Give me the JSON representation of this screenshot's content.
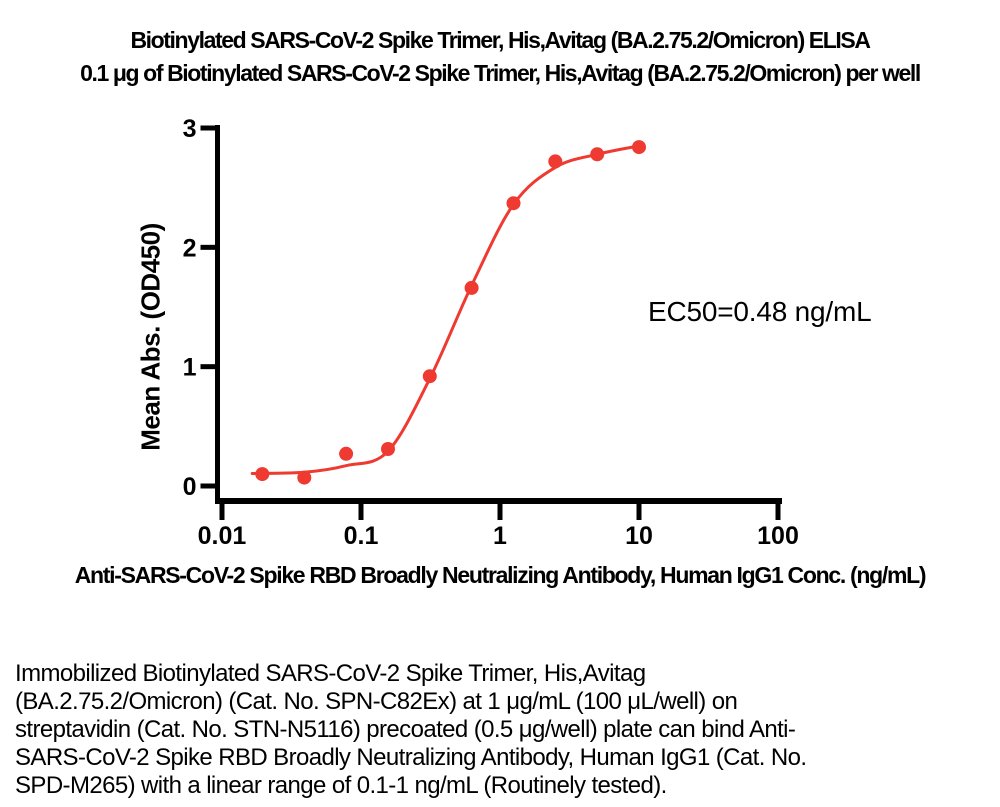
{
  "chart_data": {
    "type": "scatter",
    "title": "Biotinylated SARS-CoV-2 Spike Trimer, His,Avitag (BA.2.75.2/Omicron) ELISA",
    "subtitle": "0.1 μg of Biotinylated SARS-CoV-2 Spike Trimer, His,Avitag (BA.2.75.2/Omicron) per well",
    "xlabel": "Anti-SARS-CoV-2 Spike RBD Broadly Neutralizing Antibody, Human IgG1 Conc. (ng/mL)",
    "ylabel": "Mean Abs. (OD450)",
    "x_scale": "log",
    "xlim": [
      0.01,
      100
    ],
    "ylim": [
      0,
      3
    ],
    "x_ticks": [
      0.01,
      0.1,
      1,
      10,
      100
    ],
    "x_tick_labels": [
      "0.01",
      "0.1",
      "1",
      "10",
      "100"
    ],
    "y_ticks": [
      0,
      1,
      2,
      3
    ],
    "y_tick_labels": [
      "0",
      "1",
      "2",
      "3"
    ],
    "grid": false,
    "legend": "none",
    "annotation": "EC50=0.48 ng/mL",
    "point_color": "#ee3a31",
    "line_color": "#ee3a31",
    "axis_color": "#000000",
    "series": [
      {
        "name": "Mean Abs. (OD450)",
        "x": [
          0.0195,
          0.0391,
          0.0781,
          0.1563,
          0.3125,
          0.625,
          1.25,
          2.5,
          5,
          10
        ],
        "y": [
          0.1,
          0.07,
          0.27,
          0.31,
          0.92,
          1.66,
          2.37,
          2.72,
          2.78,
          2.84
        ]
      }
    ],
    "fit_curve": {
      "model": "4PL sigmoidal",
      "ec50_ng_ml": 0.48,
      "anchors": [
        [
          0.0165,
          0.105
        ],
        [
          0.039,
          0.115
        ],
        [
          0.078,
          0.17
        ],
        [
          0.156,
          0.29
        ],
        [
          0.3125,
          0.9
        ],
        [
          0.625,
          1.68
        ],
        [
          1.25,
          2.36
        ],
        [
          2.5,
          2.67
        ],
        [
          5,
          2.78
        ],
        [
          10,
          2.85
        ]
      ]
    }
  },
  "footer": {
    "lines": [
      "Immobilized Biotinylated SARS-CoV-2 Spike Trimer, His,Avitag",
      "(BA.2.75.2/Omicron) (Cat. No. SPN-C82Ex) at 1 μg/mL (100 μL/well) on",
      "streptavidin (Cat. No. STN-N5116) precoated (0.5 μg/well) plate can bind Anti-",
      "SARS-CoV-2 Spike RBD Broadly Neutralizing Antibody, Human IgG1 (Cat. No.",
      "SPD-M265) with a linear range of 0.1-1 ng/mL (Routinely tested)."
    ]
  }
}
